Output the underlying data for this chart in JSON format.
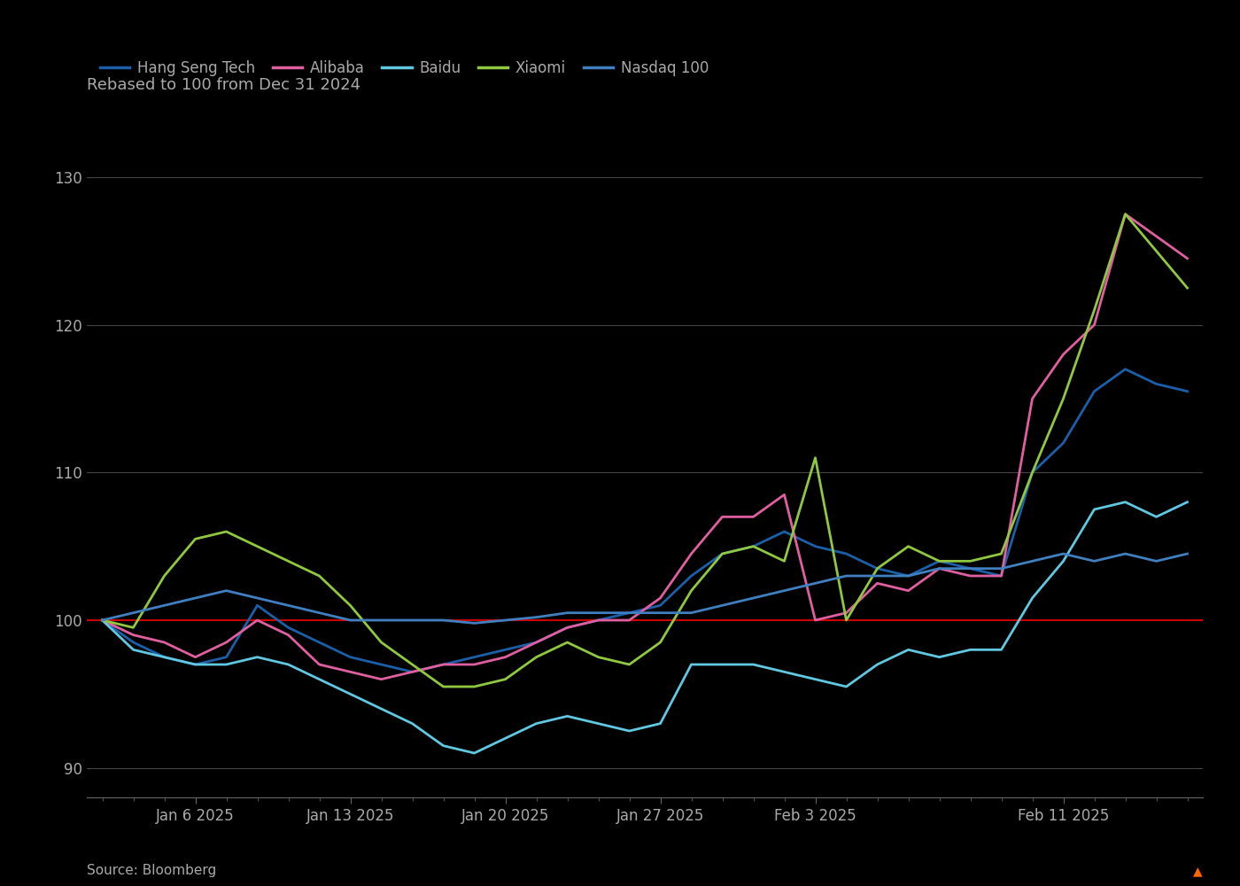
{
  "title": "Rebased to 100 from Dec 31 2024",
  "source": "Source: Bloomberg",
  "background_color": "#000000",
  "text_color": "#aaaaaa",
  "grid_color": "#444444",
  "ylim": [
    88,
    133
  ],
  "yticks": [
    90,
    100,
    110,
    120,
    130
  ],
  "xtick_labels": [
    "Jan 6 2025",
    "Jan 13 2025",
    "Jan 20 2025",
    "Jan 27 2025",
    "Feb 3 2025",
    "Feb 11 2025"
  ],
  "xtick_positions": [
    3,
    8,
    13,
    18,
    23,
    31
  ],
  "series_order": [
    "Hang Seng Tech",
    "Alibaba",
    "Baidu",
    "Xiaomi",
    "Nasdaq 100"
  ],
  "colors": {
    "Hang Seng Tech": "#1a5fa8",
    "Alibaba": "#e05fa0",
    "Baidu": "#60c8e0",
    "Xiaomi": "#90c840",
    "Nasdaq 100": "#4080c0",
    "reference": "#cc0000"
  },
  "hang_seng": [
    100,
    98.5,
    97.5,
    97.0,
    97.5,
    101.0,
    99.5,
    98.5,
    97.5,
    97.0,
    96.5,
    97.0,
    97.5,
    98.0,
    98.5,
    99.5,
    100.0,
    100.5,
    101.0,
    103.0,
    104.5,
    105.0,
    106.0,
    105.0,
    104.5,
    103.5,
    103.0,
    104.0,
    103.5,
    103.0,
    110.0,
    112.0,
    115.5,
    117.0,
    116.0,
    115.5
  ],
  "alibaba": [
    100,
    99.0,
    98.5,
    97.5,
    98.5,
    100.0,
    99.0,
    97.0,
    96.5,
    96.0,
    96.5,
    97.0,
    97.0,
    97.5,
    98.5,
    99.5,
    100.0,
    100.0,
    101.5,
    104.5,
    107.0,
    107.0,
    108.5,
    100.0,
    100.5,
    102.5,
    102.0,
    103.5,
    103.0,
    103.0,
    115.0,
    118.0,
    120.0,
    127.5,
    126.0,
    124.5
  ],
  "baidu": [
    100,
    98.0,
    97.5,
    97.0,
    97.0,
    97.5,
    97.0,
    96.0,
    95.0,
    94.0,
    93.0,
    91.5,
    91.0,
    92.0,
    93.0,
    93.5,
    93.0,
    92.5,
    93.0,
    97.0,
    97.0,
    97.0,
    96.5,
    96.0,
    95.5,
    97.0,
    98.0,
    97.5,
    98.0,
    98.0,
    101.5,
    104.0,
    107.5,
    108.0,
    107.0,
    108.0
  ],
  "xiaomi": [
    100,
    99.5,
    103.0,
    105.5,
    106.0,
    105.0,
    104.0,
    103.0,
    101.0,
    98.5,
    97.0,
    95.5,
    95.5,
    96.0,
    97.5,
    98.5,
    97.5,
    97.0,
    98.5,
    102.0,
    104.5,
    105.0,
    104.0,
    111.0,
    100.0,
    103.5,
    105.0,
    104.0,
    104.0,
    104.5,
    110.0,
    115.0,
    121.0,
    127.5,
    125.0,
    122.5
  ],
  "nasdaq": [
    100,
    100.5,
    101.0,
    101.5,
    102.0,
    101.5,
    101.0,
    100.5,
    100.0,
    100.0,
    100.0,
    100.0,
    99.8,
    100.0,
    100.2,
    100.5,
    100.5,
    100.5,
    100.5,
    100.5,
    101.0,
    101.5,
    102.0,
    102.5,
    103.0,
    103.0,
    103.0,
    103.5,
    103.5,
    103.5,
    104.0,
    104.5,
    104.0,
    104.5,
    104.0,
    104.5
  ]
}
